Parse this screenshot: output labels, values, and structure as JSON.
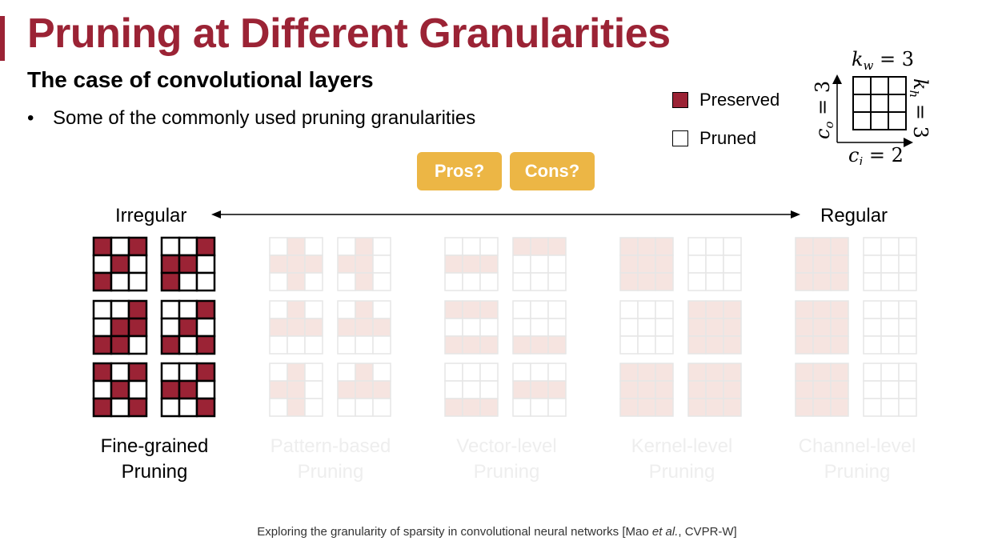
{
  "slide": {
    "title": "Pruning at Different Granularities",
    "subtitle": "The case of convolutional layers",
    "bullet": "Some of the commonly used pruning granularities",
    "bullet_symbol": "•"
  },
  "legend": {
    "preserved_label": "Preserved",
    "pruned_label": "Pruned",
    "preserved_color": "#9b2335",
    "pruned_color": "#ffffff"
  },
  "schematic": {
    "kw": "k",
    "kw_sub": "w",
    "kw_val": " = 3",
    "kh": "k",
    "kh_sub": "h",
    "kh_val": " = 3",
    "co": "c",
    "co_sub": "o",
    "co_val": " = 3",
    "ci": "c",
    "ci_sub": "i",
    "ci_val": " = 2"
  },
  "buttons": {
    "pros": "Pros?",
    "cons": "Cons?"
  },
  "spectrum": {
    "left": "Irregular",
    "right": "Regular"
  },
  "groups": [
    {
      "line1": "Fine-grained",
      "line2": "Pruning",
      "active": true,
      "kernels": [
        [
          [
            1,
            0,
            1
          ],
          [
            0,
            1,
            0
          ],
          [
            1,
            0,
            0
          ]
        ],
        [
          [
            0,
            0,
            1
          ],
          [
            1,
            1,
            0
          ],
          [
            1,
            0,
            0
          ]
        ],
        [
          [
            0,
            0,
            1
          ],
          [
            0,
            1,
            1
          ],
          [
            1,
            1,
            0
          ]
        ],
        [
          [
            0,
            0,
            1
          ],
          [
            0,
            1,
            0
          ],
          [
            1,
            0,
            1
          ]
        ],
        [
          [
            1,
            0,
            1
          ],
          [
            0,
            1,
            0
          ],
          [
            1,
            0,
            1
          ]
        ],
        [
          [
            0,
            0,
            1
          ],
          [
            1,
            1,
            0
          ],
          [
            0,
            0,
            1
          ]
        ]
      ]
    },
    {
      "line1": "Pattern-based",
      "line2": "Pruning",
      "active": false,
      "kernels": [
        [
          [
            0,
            1,
            0
          ],
          [
            1,
            1,
            1
          ],
          [
            0,
            1,
            0
          ]
        ],
        [
          [
            0,
            1,
            0
          ],
          [
            1,
            1,
            0
          ],
          [
            0,
            1,
            0
          ]
        ],
        [
          [
            0,
            1,
            0
          ],
          [
            1,
            1,
            1
          ],
          [
            0,
            0,
            0
          ]
        ],
        [
          [
            0,
            1,
            0
          ],
          [
            1,
            1,
            1
          ],
          [
            0,
            0,
            0
          ]
        ],
        [
          [
            0,
            1,
            0
          ],
          [
            1,
            1,
            0
          ],
          [
            0,
            1,
            0
          ]
        ],
        [
          [
            0,
            1,
            0
          ],
          [
            1,
            1,
            1
          ],
          [
            0,
            0,
            0
          ]
        ]
      ]
    },
    {
      "line1": "Vector-level",
      "line2": "Pruning",
      "active": false,
      "kernels": [
        [
          [
            0,
            0,
            0
          ],
          [
            1,
            1,
            1
          ],
          [
            0,
            0,
            0
          ]
        ],
        [
          [
            1,
            1,
            1
          ],
          [
            0,
            0,
            0
          ],
          [
            0,
            0,
            0
          ]
        ],
        [
          [
            1,
            1,
            1
          ],
          [
            0,
            0,
            0
          ],
          [
            1,
            1,
            1
          ]
        ],
        [
          [
            0,
            0,
            0
          ],
          [
            0,
            0,
            0
          ],
          [
            1,
            1,
            1
          ]
        ],
        [
          [
            0,
            0,
            0
          ],
          [
            0,
            0,
            0
          ],
          [
            1,
            1,
            1
          ]
        ],
        [
          [
            0,
            0,
            0
          ],
          [
            1,
            1,
            1
          ],
          [
            0,
            0,
            0
          ]
        ]
      ]
    },
    {
      "line1": "Kernel-level",
      "line2": "Pruning",
      "active": false,
      "kernels": [
        [
          [
            1,
            1,
            1
          ],
          [
            1,
            1,
            1
          ],
          [
            1,
            1,
            1
          ]
        ],
        [
          [
            0,
            0,
            0
          ],
          [
            0,
            0,
            0
          ],
          [
            0,
            0,
            0
          ]
        ],
        [
          [
            0,
            0,
            0
          ],
          [
            0,
            0,
            0
          ],
          [
            0,
            0,
            0
          ]
        ],
        [
          [
            1,
            1,
            1
          ],
          [
            1,
            1,
            1
          ],
          [
            1,
            1,
            1
          ]
        ],
        [
          [
            1,
            1,
            1
          ],
          [
            1,
            1,
            1
          ],
          [
            1,
            1,
            1
          ]
        ],
        [
          [
            1,
            1,
            1
          ],
          [
            1,
            1,
            1
          ],
          [
            1,
            1,
            1
          ]
        ]
      ]
    },
    {
      "line1": "Channel-level",
      "line2": "Pruning",
      "active": false,
      "kernels": [
        [
          [
            1,
            1,
            1
          ],
          [
            1,
            1,
            1
          ],
          [
            1,
            1,
            1
          ]
        ],
        [
          [
            0,
            0,
            0
          ],
          [
            0,
            0,
            0
          ],
          [
            0,
            0,
            0
          ]
        ],
        [
          [
            1,
            1,
            1
          ],
          [
            1,
            1,
            1
          ],
          [
            1,
            1,
            1
          ]
        ],
        [
          [
            0,
            0,
            0
          ],
          [
            0,
            0,
            0
          ],
          [
            0,
            0,
            0
          ]
        ],
        [
          [
            1,
            1,
            1
          ],
          [
            1,
            1,
            1
          ],
          [
            1,
            1,
            1
          ]
        ],
        [
          [
            0,
            0,
            0
          ],
          [
            0,
            0,
            0
          ],
          [
            0,
            0,
            0
          ]
        ]
      ]
    }
  ],
  "citation": {
    "prefix": "Exploring the granularity of sparsity in convolutional neural networks [Mao ",
    "etal": "et al.",
    "suffix": ", CVPR-W]"
  }
}
